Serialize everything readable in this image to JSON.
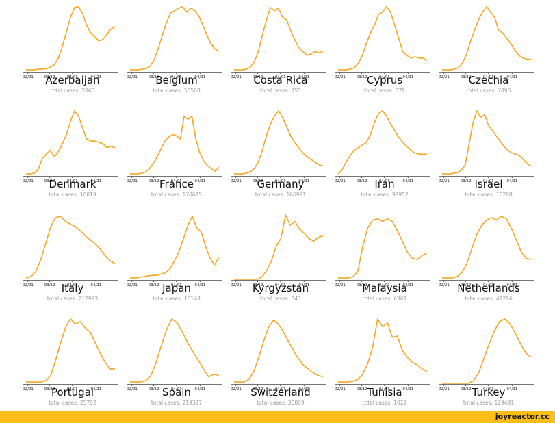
{
  "footer": {
    "site": "joyreactor.cc",
    "bar_color": "#fbbd17"
  },
  "line_color": "#f6a623",
  "chart_data": [
    {
      "type": "line",
      "title": "Azerbaijan",
      "subtitle": "total cases: 2060",
      "x_ticks": [
        "02/21",
        "03/12",
        "04/01",
        "04/21"
      ],
      "values": [
        0.02,
        0.02,
        0.02,
        0.03,
        0.03,
        0.04,
        0.06,
        0.1,
        0.2,
        0.38,
        0.6,
        0.82,
        0.97,
        0.98,
        0.88,
        0.7,
        0.58,
        0.52,
        0.46,
        0.48,
        0.56,
        0.64,
        0.68
      ]
    },
    {
      "type": "line",
      "title": "Belgium",
      "subtitle": "total cases: 50508",
      "x_ticks": [
        "02/21",
        "03/12",
        "04/01",
        "04/21"
      ],
      "values": [
        0.02,
        0.02,
        0.02,
        0.03,
        0.04,
        0.08,
        0.18,
        0.35,
        0.55,
        0.74,
        0.88,
        0.92,
        0.96,
        0.98,
        0.9,
        0.96,
        0.92,
        0.84,
        0.7,
        0.55,
        0.42,
        0.34,
        0.3
      ]
    },
    {
      "type": "line",
      "title": "Costa Rica",
      "subtitle": "total cases: 755",
      "x_ticks": [
        "02/21",
        "03/12",
        "04/01",
        "04/21"
      ],
      "values": [
        0.02,
        0.02,
        0.02,
        0.03,
        0.06,
        0.14,
        0.3,
        0.55,
        0.78,
        0.97,
        0.92,
        0.96,
        0.82,
        0.78,
        0.62,
        0.48,
        0.36,
        0.3,
        0.24,
        0.26,
        0.3,
        0.28,
        0.3
      ]
    },
    {
      "type": "line",
      "title": "Cyprus",
      "subtitle": "total cases: 878",
      "x_ticks": [
        "02/21",
        "03/12",
        "04/01",
        "04/21"
      ],
      "values": [
        0.02,
        0.02,
        0.02,
        0.03,
        0.05,
        0.12,
        0.24,
        0.42,
        0.58,
        0.7,
        0.86,
        0.9,
        0.98,
        0.9,
        0.7,
        0.5,
        0.3,
        0.24,
        0.2,
        0.22,
        0.2,
        0.2,
        0.16
      ]
    },
    {
      "type": "line",
      "title": "Czechia",
      "subtitle": "total cases: 7896",
      "x_ticks": [
        "02/21",
        "03/12",
        "04/01",
        "04/21"
      ],
      "values": [
        0.02,
        0.02,
        0.02,
        0.03,
        0.05,
        0.12,
        0.25,
        0.45,
        0.62,
        0.78,
        0.9,
        0.98,
        0.9,
        0.82,
        0.62,
        0.58,
        0.5,
        0.42,
        0.32,
        0.24,
        0.2,
        0.18,
        0.18
      ]
    },
    {
      "type": "line",
      "title": "Denmark",
      "subtitle": "total cases: 10019",
      "x_ticks": [
        "02/21",
        "03/12",
        "04/01",
        "04/21"
      ],
      "values": [
        0.02,
        0.02,
        0.03,
        0.08,
        0.25,
        0.32,
        0.38,
        0.28,
        0.36,
        0.48,
        0.62,
        0.82,
        0.98,
        0.9,
        0.72,
        0.55,
        0.52,
        0.52,
        0.5,
        0.48,
        0.42,
        0.44,
        0.42
      ]
    },
    {
      "type": "line",
      "title": "France",
      "subtitle": "total cases: 170675",
      "x_ticks": [
        "02/21",
        "03/12",
        "04/01",
        "04/21"
      ],
      "values": [
        0.02,
        0.02,
        0.02,
        0.03,
        0.05,
        0.1,
        0.18,
        0.28,
        0.4,
        0.52,
        0.58,
        0.62,
        0.6,
        0.55,
        0.9,
        0.85,
        0.9,
        0.55,
        0.35,
        0.22,
        0.15,
        0.1,
        0.06,
        0.12
      ]
    },
    {
      "type": "line",
      "title": "Germany",
      "subtitle": "total cases: 166991",
      "x_ticks": [
        "02/21",
        "03/12",
        "04/01",
        "04/21"
      ],
      "values": [
        0.02,
        0.02,
        0.02,
        0.03,
        0.05,
        0.1,
        0.2,
        0.38,
        0.6,
        0.78,
        0.9,
        0.98,
        0.88,
        0.74,
        0.6,
        0.5,
        0.42,
        0.34,
        0.28,
        0.24,
        0.2,
        0.16,
        0.14
      ]
    },
    {
      "type": "line",
      "title": "Iran",
      "subtitle": "total cases: 99952",
      "x_ticks": [
        "02/21",
        "03/12",
        "04/01",
        "04/21"
      ],
      "values": [
        0.02,
        0.08,
        0.2,
        0.3,
        0.38,
        0.42,
        0.46,
        0.5,
        0.62,
        0.8,
        0.94,
        0.98,
        0.9,
        0.78,
        0.68,
        0.58,
        0.5,
        0.44,
        0.38,
        0.34,
        0.32,
        0.32,
        0.32
      ]
    },
    {
      "type": "line",
      "title": "Israel",
      "subtitle": "total cases: 16288",
      "x_ticks": [
        "02/21",
        "03/12",
        "04/01",
        "04/21"
      ],
      "values": [
        0.02,
        0.02,
        0.02,
        0.03,
        0.04,
        0.08,
        0.16,
        0.48,
        0.8,
        0.98,
        0.88,
        0.92,
        0.76,
        0.68,
        0.6,
        0.52,
        0.44,
        0.38,
        0.34,
        0.32,
        0.3,
        0.24,
        0.18,
        0.14
      ]
    },
    {
      "type": "line",
      "title": "Italy",
      "subtitle": "total cases: 212993",
      "x_ticks": [
        "02/21",
        "03/12",
        "04/01",
        "04/21"
      ],
      "values": [
        0.02,
        0.04,
        0.12,
        0.3,
        0.55,
        0.8,
        0.94,
        0.96,
        0.88,
        0.84,
        0.8,
        0.74,
        0.66,
        0.6,
        0.54,
        0.46,
        0.36,
        0.28,
        0.24
      ]
    },
    {
      "type": "line",
      "title": "Japan",
      "subtitle": "total cases: 15148",
      "x_ticks": [
        "02/21",
        "03/12",
        "04/01",
        "04/21"
      ],
      "values": [
        0.02,
        0.02,
        0.03,
        0.04,
        0.05,
        0.06,
        0.06,
        0.08,
        0.1,
        0.16,
        0.28,
        0.42,
        0.62,
        0.82,
        0.96,
        0.78,
        0.72,
        0.5,
        0.32,
        0.22,
        0.34
      ]
    },
    {
      "type": "line",
      "title": "Kyrgyzstan",
      "subtitle": "total cases: 843",
      "x_ticks": [
        "02/21",
        "03/12",
        "04/01",
        "04/21"
      ],
      "values": [
        0.0,
        0.0,
        0.0,
        0.0,
        0.0,
        0.0,
        0.04,
        0.14,
        0.28,
        0.5,
        0.62,
        0.98,
        0.82,
        0.88,
        0.76,
        0.7,
        0.62,
        0.58,
        0.64,
        0.66
      ]
    },
    {
      "type": "line",
      "title": "Malaysia",
      "subtitle": "total cases: 6361",
      "x_ticks": [
        "02/21",
        "03/12",
        "04/01",
        "04/21"
      ],
      "values": [
        0.02,
        0.02,
        0.02,
        0.04,
        0.12,
        0.5,
        0.78,
        0.9,
        0.92,
        0.88,
        0.92,
        0.88,
        0.74,
        0.58,
        0.42,
        0.32,
        0.3,
        0.36,
        0.4
      ]
    },
    {
      "type": "line",
      "title": "Netherlands",
      "subtitle": "total cases: 41286",
      "x_ticks": [
        "02/21",
        "03/12",
        "04/01",
        "04/21"
      ],
      "values": [
        0.02,
        0.02,
        0.02,
        0.04,
        0.1,
        0.24,
        0.46,
        0.68,
        0.82,
        0.9,
        0.94,
        0.9,
        0.96,
        0.92,
        0.78,
        0.6,
        0.42,
        0.32,
        0.3
      ]
    },
    {
      "type": "line",
      "title": "Portugal",
      "subtitle": "total cases: 25702",
      "x_ticks": [
        "02/21",
        "03/12",
        "04/01",
        "04/21"
      ],
      "values": [
        0.02,
        0.02,
        0.02,
        0.02,
        0.04,
        0.12,
        0.35,
        0.62,
        0.85,
        0.98,
        0.9,
        0.94,
        0.84,
        0.78,
        0.62,
        0.46,
        0.32,
        0.22,
        0.22
      ]
    },
    {
      "type": "line",
      "title": "Spain",
      "subtitle": "total cases: 219327",
      "x_ticks": [
        "02/21",
        "03/12",
        "04/01",
        "04/21"
      ],
      "values": [
        0.02,
        0.02,
        0.02,
        0.04,
        0.12,
        0.32,
        0.58,
        0.82,
        0.98,
        0.92,
        0.78,
        0.62,
        0.48,
        0.36,
        0.22,
        0.1,
        0.14,
        0.12
      ]
    },
    {
      "type": "line",
      "title": "Switzerland",
      "subtitle": "total cases: 30009",
      "x_ticks": [
        "02/21",
        "03/12",
        "04/01",
        "04/21"
      ],
      "values": [
        0.02,
        0.02,
        0.02,
        0.06,
        0.18,
        0.4,
        0.64,
        0.86,
        0.96,
        0.9,
        0.78,
        0.64,
        0.5,
        0.38,
        0.28,
        0.22,
        0.16,
        0.12,
        0.1
      ]
    },
    {
      "type": "line",
      "title": "Tunisia",
      "subtitle": "total cases: 1022",
      "x_ticks": [
        "02/21",
        "03/12",
        "04/01",
        "04/21"
      ],
      "values": [
        0.02,
        0.02,
        0.02,
        0.03,
        0.06,
        0.14,
        0.3,
        0.55,
        0.98,
        0.86,
        0.92,
        0.7,
        0.72,
        0.5,
        0.4,
        0.32,
        0.28,
        0.22,
        0.18
      ]
    },
    {
      "type": "line",
      "title": "Turkey",
      "subtitle": "total cases: 129491",
      "x_ticks": [
        "02/21",
        "03/12",
        "04/01",
        "04/21"
      ],
      "values": [
        0.0,
        0.0,
        0.0,
        0.0,
        0.0,
        0.0,
        0.04,
        0.16,
        0.38,
        0.6,
        0.8,
        0.94,
        0.98,
        0.9,
        0.76,
        0.6,
        0.46,
        0.4
      ]
    }
  ]
}
